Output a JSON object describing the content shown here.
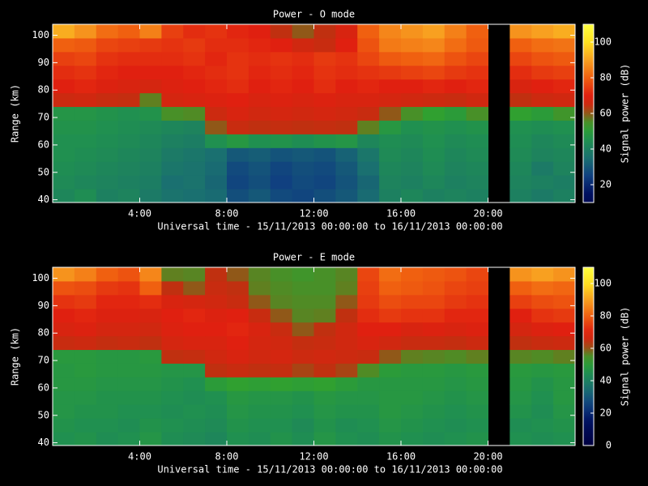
{
  "chart_data": [
    {
      "type": "heatmap",
      "title": "Power - O mode",
      "xlabel": "Universal time - 15/11/2013 00:00:00 to 16/11/2013 00:00:00",
      "ylabel": "Range (km)",
      "colorbar_label": "Signal power (dB)",
      "xlim": [
        0,
        24
      ],
      "ylim": [
        39,
        104
      ],
      "clim": [
        10,
        110
      ],
      "xticks": [
        {
          "value": 4,
          "label": "4:00"
        },
        {
          "value": 8,
          "label": "8:00"
        },
        {
          "value": 12,
          "label": "12:00"
        },
        {
          "value": 16,
          "label": "16:00"
        },
        {
          "value": 20,
          "label": "20:00"
        }
      ],
      "yticks": [
        40,
        50,
        60,
        70,
        80,
        90,
        100
      ],
      "cticks": [
        20,
        40,
        60,
        80,
        100
      ],
      "xbins": [
        0,
        1,
        2,
        3,
        4,
        5,
        6,
        7,
        8,
        9,
        10,
        11,
        12,
        13,
        14,
        15,
        16,
        17,
        18,
        19,
        20,
        21,
        22,
        23,
        24
      ],
      "ybins": [
        39,
        44,
        49,
        54,
        59,
        64,
        69,
        74,
        79,
        84,
        89,
        94,
        99,
        104
      ],
      "values": [
        [
          42,
          44,
          40,
          41,
          38,
          36,
          35,
          34,
          28,
          30,
          27,
          26,
          28,
          30,
          34,
          40,
          42,
          40,
          41,
          40,
          null,
          40,
          38,
          40
        ],
        [
          43,
          42,
          41,
          40,
          39,
          35,
          36,
          33,
          26,
          28,
          25,
          27,
          26,
          29,
          33,
          41,
          40,
          42,
          40,
          41,
          null,
          41,
          40,
          39
        ],
        [
          44,
          43,
          42,
          41,
          40,
          37,
          36,
          34,
          27,
          29,
          26,
          28,
          27,
          30,
          35,
          42,
          41,
          43,
          41,
          42,
          null,
          42,
          38,
          41
        ],
        [
          45,
          44,
          43,
          42,
          41,
          38,
          37,
          35,
          30,
          31,
          29,
          30,
          29,
          32,
          37,
          43,
          42,
          44,
          42,
          43,
          null,
          43,
          41,
          42
        ],
        [
          45,
          45,
          44,
          43,
          42,
          40,
          39,
          45,
          48,
          45,
          46,
          44,
          46,
          47,
          42,
          44,
          43,
          45,
          43,
          44,
          null,
          44,
          42,
          43
        ],
        [
          46,
          46,
          45,
          44,
          43,
          42,
          41,
          60,
          64,
          62,
          63,
          62,
          63,
          62,
          58,
          48,
          45,
          46,
          45,
          46,
          null,
          45,
          44,
          45
        ],
        [
          47,
          47,
          46,
          45,
          46,
          55,
          56,
          65,
          68,
          66,
          67,
          66,
          67,
          66,
          64,
          60,
          55,
          52,
          50,
          55,
          null,
          52,
          50,
          54
        ],
        [
          65,
          66,
          64,
          63,
          58,
          67,
          68,
          69,
          70,
          68,
          69,
          68,
          69,
          68,
          68,
          67,
          66,
          65,
          64,
          66,
          null,
          62,
          65,
          66
        ],
        [
          70,
          71,
          69,
          68,
          67,
          69,
          70,
          71,
          72,
          70,
          71,
          70,
          72,
          70,
          71,
          70,
          70,
          71,
          70,
          71,
          null,
          68,
          70,
          71
        ],
        [
          72,
          73,
          71,
          70,
          70,
          70,
          71,
          72,
          73,
          71,
          72,
          71,
          73,
          72,
          73,
          74,
          75,
          76,
          74,
          73,
          null,
          72,
          74,
          75
        ],
        [
          75,
          76,
          73,
          72,
          72,
          72,
          73,
          71,
          73,
          72,
          73,
          72,
          74,
          73,
          76,
          79,
          80,
          81,
          78,
          76,
          null,
          76,
          78,
          79
        ],
        [
          80,
          79,
          76,
          75,
          74,
          73,
          74,
          72,
          72,
          71,
          70,
          66,
          64,
          70,
          78,
          84,
          85,
          86,
          82,
          79,
          null,
          80,
          82,
          83
        ],
        [
          92,
          88,
          82,
          80,
          85,
          75,
          72,
          73,
          71,
          70,
          62,
          60,
          62,
          68,
          80,
          86,
          88,
          90,
          85,
          80,
          null,
          88,
          90,
          92
        ]
      ]
    },
    {
      "type": "heatmap",
      "title": "Power - E mode",
      "xlabel": "Universal time - 15/11/2013 00:00:00 to 16/11/2013 00:00:00",
      "ylabel": "Range (km)",
      "colorbar_label": "Signal power (dB)",
      "xlim": [
        0,
        24
      ],
      "ylim": [
        39,
        104
      ],
      "clim": [
        0,
        110
      ],
      "xticks": [
        {
          "value": 4,
          "label": "4:00"
        },
        {
          "value": 8,
          "label": "8:00"
        },
        {
          "value": 12,
          "label": "12:00"
        },
        {
          "value": 16,
          "label": "16:00"
        },
        {
          "value": 20,
          "label": "20:00"
        }
      ],
      "yticks": [
        40,
        50,
        60,
        70,
        80,
        90,
        100
      ],
      "cticks": [
        0,
        20,
        40,
        60,
        80,
        100
      ],
      "xbins": [
        0,
        1,
        2,
        3,
        4,
        5,
        6,
        7,
        8,
        9,
        10,
        11,
        12,
        13,
        14,
        15,
        16,
        17,
        18,
        19,
        20,
        21,
        22,
        23,
        24
      ],
      "ybins": [
        39,
        44,
        49,
        54,
        59,
        64,
        69,
        74,
        79,
        84,
        89,
        94,
        99,
        104
      ],
      "values": [
        [
          45,
          46,
          44,
          45,
          47,
          44,
          43,
          42,
          45,
          44,
          46,
          44,
          47,
          45,
          44,
          46,
          45,
          44,
          45,
          46,
          null,
          45,
          44,
          45
        ],
        [
          46,
          45,
          45,
          44,
          46,
          45,
          44,
          43,
          46,
          45,
          45,
          43,
          46,
          44,
          45,
          47,
          46,
          45,
          44,
          45,
          null,
          44,
          45,
          46
        ],
        [
          47,
          46,
          46,
          45,
          45,
          44,
          45,
          44,
          47,
          46,
          46,
          45,
          47,
          46,
          46,
          48,
          47,
          46,
          45,
          46,
          null,
          46,
          44,
          47
        ],
        [
          47,
          47,
          46,
          46,
          46,
          45,
          44,
          45,
          48,
          47,
          47,
          46,
          48,
          47,
          47,
          48,
          48,
          47,
          46,
          47,
          null,
          47,
          45,
          48
        ],
        [
          48,
          48,
          47,
          47,
          47,
          46,
          45,
          50,
          52,
          51,
          52,
          51,
          52,
          50,
          48,
          48,
          48,
          48,
          47,
          48,
          null,
          48,
          46,
          48
        ],
        [
          48,
          49,
          48,
          48,
          48,
          47,
          47,
          62,
          64,
          62,
          63,
          61,
          62,
          61,
          56,
          50,
          49,
          49,
          48,
          49,
          null,
          49,
          48,
          49
        ],
        [
          49,
          49,
          48,
          48,
          49,
          62,
          63,
          66,
          68,
          66,
          67,
          65,
          66,
          65,
          64,
          60,
          58,
          57,
          56,
          58,
          null,
          57,
          56,
          58
        ],
        [
          64,
          65,
          63,
          64,
          62,
          67,
          68,
          68,
          70,
          67,
          66,
          63,
          64,
          66,
          68,
          66,
          64,
          64,
          63,
          65,
          null,
          62,
          64,
          65
        ],
        [
          68,
          69,
          67,
          67,
          66,
          69,
          70,
          70,
          71,
          68,
          64,
          60,
          62,
          66,
          70,
          70,
          68,
          69,
          68,
          69,
          null,
          67,
          69,
          70
        ],
        [
          70,
          71,
          69,
          69,
          68,
          70,
          71,
          69,
          70,
          64,
          60,
          57,
          58,
          62,
          72,
          74,
          73,
          73,
          71,
          71,
          null,
          70,
          73,
          74
        ],
        [
          73,
          74,
          71,
          71,
          72,
          68,
          67,
          66,
          64,
          60,
          57,
          56,
          56,
          60,
          74,
          77,
          76,
          76,
          74,
          73,
          null,
          75,
          77,
          78
        ],
        [
          78,
          77,
          74,
          73,
          80,
          62,
          60,
          64,
          62,
          58,
          56,
          55,
          55,
          58,
          75,
          80,
          79,
          78,
          76,
          75,
          null,
          80,
          82,
          81
        ],
        [
          88,
          85,
          80,
          78,
          86,
          58,
          57,
          62,
          60,
          57,
          55,
          54,
          55,
          57,
          76,
          82,
          80,
          79,
          78,
          76,
          null,
          88,
          90,
          88
        ]
      ]
    }
  ]
}
